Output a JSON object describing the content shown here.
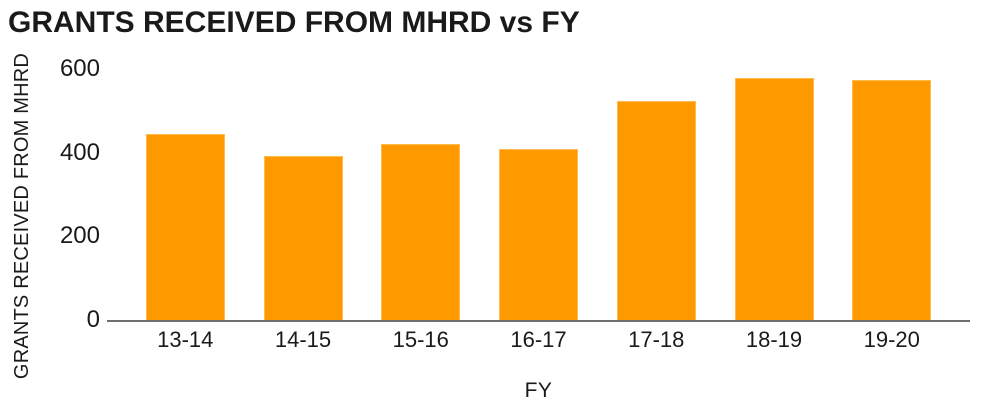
{
  "title": "GRANTS RECEIVED FROM MHRD vs FY",
  "x_axis_title": "FY",
  "y_axis_title": "GRANTS RECEIVED FROM MHRD",
  "colors": {
    "bar_fill": "#FF9900",
    "bar_border": "#FFBB4D",
    "axis_line": "#6E6E6E",
    "text": "#1A1A1A",
    "background": "#FFFFFF"
  },
  "chart_data": {
    "type": "bar",
    "title": "GRANTS RECEIVED FROM MHRD vs FY",
    "xlabel": "FY",
    "ylabel": "GRANTS RECEIVED FROM MHRD",
    "categories": [
      "13-14",
      "14-15",
      "15-16",
      "16-17",
      "17-18",
      "18-19",
      "19-20"
    ],
    "values": [
      444,
      392,
      420,
      408,
      524,
      578,
      574
    ],
    "ylim": [
      0,
      600
    ],
    "yticks": [
      0,
      200,
      400,
      600
    ],
    "grid": false,
    "legend": false,
    "bar_color": "#FF9900"
  }
}
